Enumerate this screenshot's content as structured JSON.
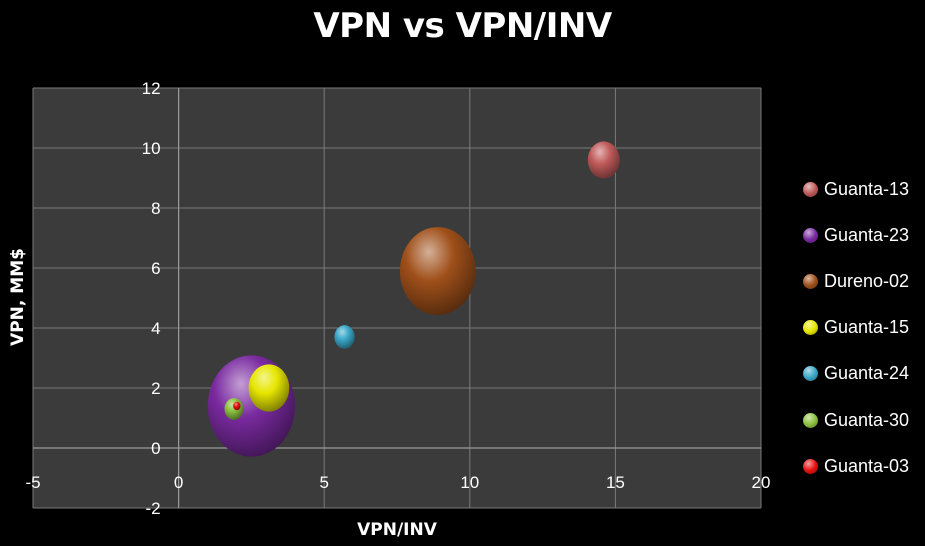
{
  "chart_data": {
    "type": "bubble",
    "title": "VPN vs VPN/INV",
    "xlabel": "VPN/INV",
    "ylabel": "VPN, MM$",
    "xlim": [
      -5,
      20
    ],
    "ylim": [
      -2,
      12
    ],
    "xticks": [
      -5,
      0,
      5,
      10,
      15,
      20
    ],
    "yticks": [
      -2,
      0,
      2,
      4,
      6,
      8,
      10,
      12
    ],
    "grid": true,
    "legend_position": "right",
    "series": [
      {
        "name": "Guanta-13",
        "x": 14.6,
        "y": 9.6,
        "size": 1.1,
        "color": "#c05a5a"
      },
      {
        "name": "Guanta-23",
        "x": 2.5,
        "y": 1.4,
        "size": 3.0,
        "color": "#7a2aa0"
      },
      {
        "name": "Dureno-02",
        "x": 8.9,
        "y": 5.9,
        "size": 2.6,
        "color": "#a0501a"
      },
      {
        "name": "Guanta-15",
        "x": 3.1,
        "y": 2.0,
        "size": 1.4,
        "color": "#e6e600"
      },
      {
        "name": "Guanta-24",
        "x": 5.7,
        "y": 3.7,
        "size": 0.7,
        "color": "#3aa8c8"
      },
      {
        "name": "Guanta-30",
        "x": 1.9,
        "y": 1.3,
        "size": 0.65,
        "color": "#8cc040"
      },
      {
        "name": "Guanta-03",
        "x": 2.0,
        "y": 1.4,
        "size": 0.25,
        "color": "#e81010"
      }
    ]
  }
}
